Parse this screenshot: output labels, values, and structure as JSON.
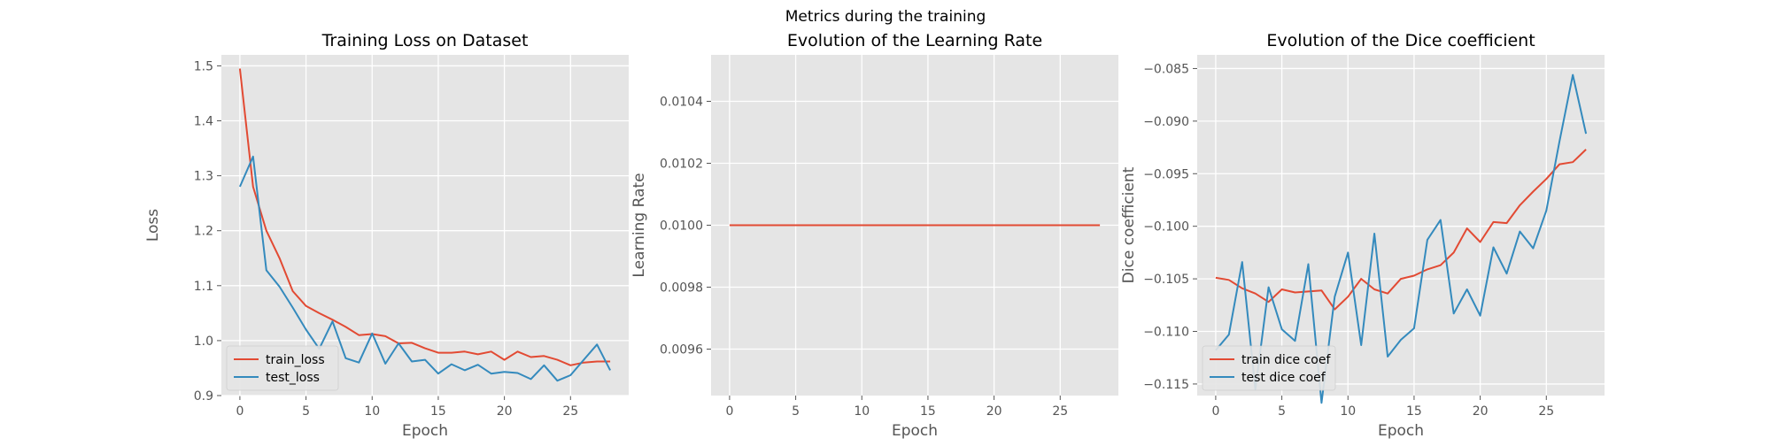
{
  "figure_title": "Metrics during the training",
  "colors": {
    "red": "#E24A33",
    "blue": "#348ABD",
    "panel_bg": "#E5E5E5",
    "grid": "#FFFFFF",
    "tick_text": "#555555",
    "label_text": "#555555"
  },
  "chart_data": [
    {
      "type": "line",
      "title": "Training Loss on Dataset",
      "xlabel": "Epoch",
      "ylabel": "Loss",
      "xlim": [
        -1.4,
        29.4
      ],
      "ylim": [
        0.9,
        1.52
      ],
      "xticks": [
        0,
        5,
        10,
        15,
        20,
        25
      ],
      "yticks": [
        0.9,
        1.0,
        1.1,
        1.2,
        1.3,
        1.4,
        1.5
      ],
      "tick_labels_x": [
        "0",
        "5",
        "10",
        "15",
        "20",
        "25"
      ],
      "tick_labels_y": [
        "0.9",
        "1.0",
        "1.1",
        "1.2",
        "1.3",
        "1.4",
        "1.5"
      ],
      "grid": true,
      "legend_position": "lower-left",
      "x": [
        0,
        1,
        2,
        3,
        4,
        5,
        6,
        7,
        8,
        9,
        10,
        11,
        12,
        13,
        14,
        15,
        16,
        17,
        18,
        19,
        20,
        21,
        22,
        23,
        24,
        25,
        26,
        27,
        28
      ],
      "series": [
        {
          "name": "train_loss",
          "color": "#E24A33",
          "values": [
            1.495,
            1.28,
            1.2,
            1.15,
            1.09,
            1.063,
            1.05,
            1.038,
            1.025,
            1.01,
            1.012,
            1.008,
            0.995,
            0.996,
            0.986,
            0.978,
            0.978,
            0.98,
            0.975,
            0.98,
            0.965,
            0.98,
            0.97,
            0.972,
            0.965,
            0.955,
            0.96,
            0.962,
            0.962
          ]
        },
        {
          "name": "test_loss",
          "color": "#348ABD",
          "values": [
            1.28,
            1.335,
            1.128,
            1.098,
            1.06,
            1.02,
            0.985,
            1.035,
            0.968,
            0.96,
            1.013,
            0.958,
            0.995,
            0.962,
            0.965,
            0.94,
            0.957,
            0.946,
            0.956,
            0.94,
            0.943,
            0.941,
            0.93,
            0.955,
            0.927,
            0.937,
            0.965,
            0.993,
            0.946
          ]
        }
      ]
    },
    {
      "type": "line",
      "title": "Evolution of the Learning Rate",
      "xlabel": "Epoch",
      "ylabel": "Learning Rate",
      "xlim": [
        -1.4,
        29.4
      ],
      "ylim": [
        0.00945,
        0.01055
      ],
      "xticks": [
        0,
        5,
        10,
        15,
        20,
        25
      ],
      "yticks": [
        0.0096,
        0.0098,
        0.01,
        0.0102,
        0.0104
      ],
      "tick_labels_x": [
        "0",
        "5",
        "10",
        "15",
        "20",
        "25"
      ],
      "tick_labels_y": [
        "0.0096",
        "0.0098",
        "0.0100",
        "0.0102",
        "0.0104"
      ],
      "grid": true,
      "x": [
        0,
        1,
        2,
        3,
        4,
        5,
        6,
        7,
        8,
        9,
        10,
        11,
        12,
        13,
        14,
        15,
        16,
        17,
        18,
        19,
        20,
        21,
        22,
        23,
        24,
        25,
        26,
        27,
        28
      ],
      "series": [
        {
          "color": "#E24A33",
          "values": [
            0.01,
            0.01,
            0.01,
            0.01,
            0.01,
            0.01,
            0.01,
            0.01,
            0.01,
            0.01,
            0.01,
            0.01,
            0.01,
            0.01,
            0.01,
            0.01,
            0.01,
            0.01,
            0.01,
            0.01,
            0.01,
            0.01,
            0.01,
            0.01,
            0.01,
            0.01,
            0.01,
            0.01,
            0.01
          ]
        }
      ]
    },
    {
      "type": "line",
      "title": "Evolution of the Dice coefficient",
      "xlabel": "Epoch",
      "ylabel": "Dice coefficient",
      "xlim": [
        -1.4,
        29.4
      ],
      "ylim": [
        -0.1161,
        -0.0837
      ],
      "xticks": [
        0,
        5,
        10,
        15,
        20,
        25
      ],
      "yticks": [
        -0.115,
        -0.11,
        -0.105,
        -0.1,
        -0.095,
        -0.09,
        -0.085
      ],
      "tick_labels_x": [
        "0",
        "5",
        "10",
        "15",
        "20",
        "25"
      ],
      "tick_labels_y": [
        "−0.115",
        "−0.110",
        "−0.105",
        "−0.100",
        "−0.095",
        "−0.090",
        "−0.085"
      ],
      "grid": true,
      "legend_position": "lower-left",
      "x": [
        0,
        1,
        2,
        3,
        4,
        5,
        6,
        7,
        8,
        9,
        10,
        11,
        12,
        13,
        14,
        15,
        16,
        17,
        18,
        19,
        20,
        21,
        22,
        23,
        24,
        25,
        26,
        27,
        28
      ],
      "series": [
        {
          "name": "train dice coef",
          "color": "#E24A33",
          "values": [
            -0.1049,
            -0.1051,
            -0.1059,
            -0.1064,
            -0.1072,
            -0.106,
            -0.1063,
            -0.1062,
            -0.1061,
            -0.1079,
            -0.1067,
            -0.105,
            -0.106,
            -0.1064,
            -0.105,
            -0.1047,
            -0.1041,
            -0.1037,
            -0.1025,
            -0.1002,
            -0.1015,
            -0.0996,
            -0.0997,
            -0.098,
            -0.0967,
            -0.0955,
            -0.0941,
            -0.0939,
            -0.0927
          ]
        },
        {
          "name": "test dice coef",
          "color": "#348ABD",
          "values": [
            -0.1118,
            -0.1103,
            -0.1034,
            -0.1155,
            -0.1058,
            -0.1098,
            -0.1109,
            -0.1036,
            -0.1168,
            -0.1067,
            -0.1025,
            -0.1113,
            -0.1007,
            -0.1124,
            -0.1108,
            -0.1097,
            -0.1013,
            -0.0994,
            -0.1083,
            -0.106,
            -0.1085,
            -0.102,
            -0.1045,
            -0.1005,
            -0.1021,
            -0.0985,
            -0.0919,
            -0.0856,
            -0.0912
          ]
        }
      ]
    }
  ]
}
